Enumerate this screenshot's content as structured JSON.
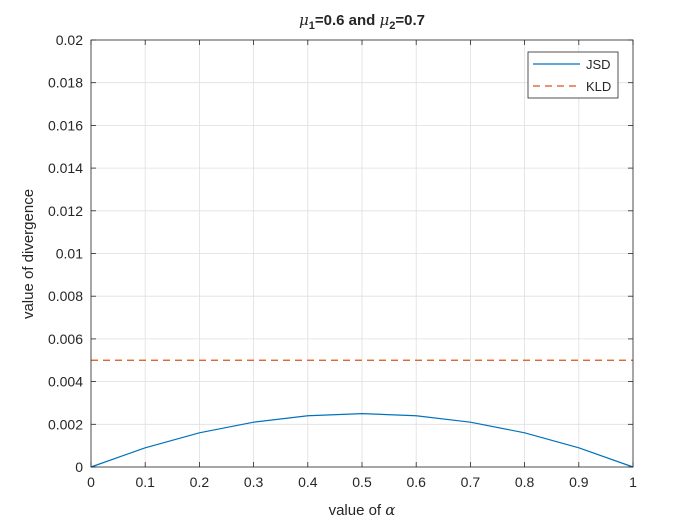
{
  "chart_data": {
    "type": "line",
    "title": {
      "prefix": "μ",
      "sub1": "1",
      "middle": "=0.6 and ",
      "prefix2": "μ",
      "sub2": "2",
      "suffix": "=0.7"
    },
    "xlabel_prefix": "value of ",
    "xlabel_symbol": "α",
    "ylabel": "value of divergence",
    "xlim": [
      0,
      1
    ],
    "ylim": [
      0,
      0.02
    ],
    "xticks": [
      "0",
      "0.1",
      "0.2",
      "0.3",
      "0.4",
      "0.5",
      "0.6",
      "0.7",
      "0.8",
      "0.9",
      "1"
    ],
    "yticks": [
      "0",
      "0.002",
      "0.004",
      "0.006",
      "0.008",
      "0.01",
      "0.012",
      "0.014",
      "0.016",
      "0.018",
      "0.02"
    ],
    "grid": true,
    "legend_position": "top-right",
    "x": [
      0,
      0.1,
      0.2,
      0.3,
      0.4,
      0.5,
      0.6,
      0.7,
      0.8,
      0.9,
      1.0
    ],
    "series": [
      {
        "name": "JSD",
        "color": "#0072BD",
        "style": "solid",
        "values": [
          0,
          0.0009,
          0.0016,
          0.0021,
          0.0024,
          0.0025,
          0.0024,
          0.0021,
          0.0016,
          0.0009,
          0
        ]
      },
      {
        "name": "KLD",
        "color": "#D95319",
        "style": "dashed",
        "values": [
          0.005,
          0.005,
          0.005,
          0.005,
          0.005,
          0.005,
          0.005,
          0.005,
          0.005,
          0.005,
          0.005
        ]
      }
    ]
  }
}
